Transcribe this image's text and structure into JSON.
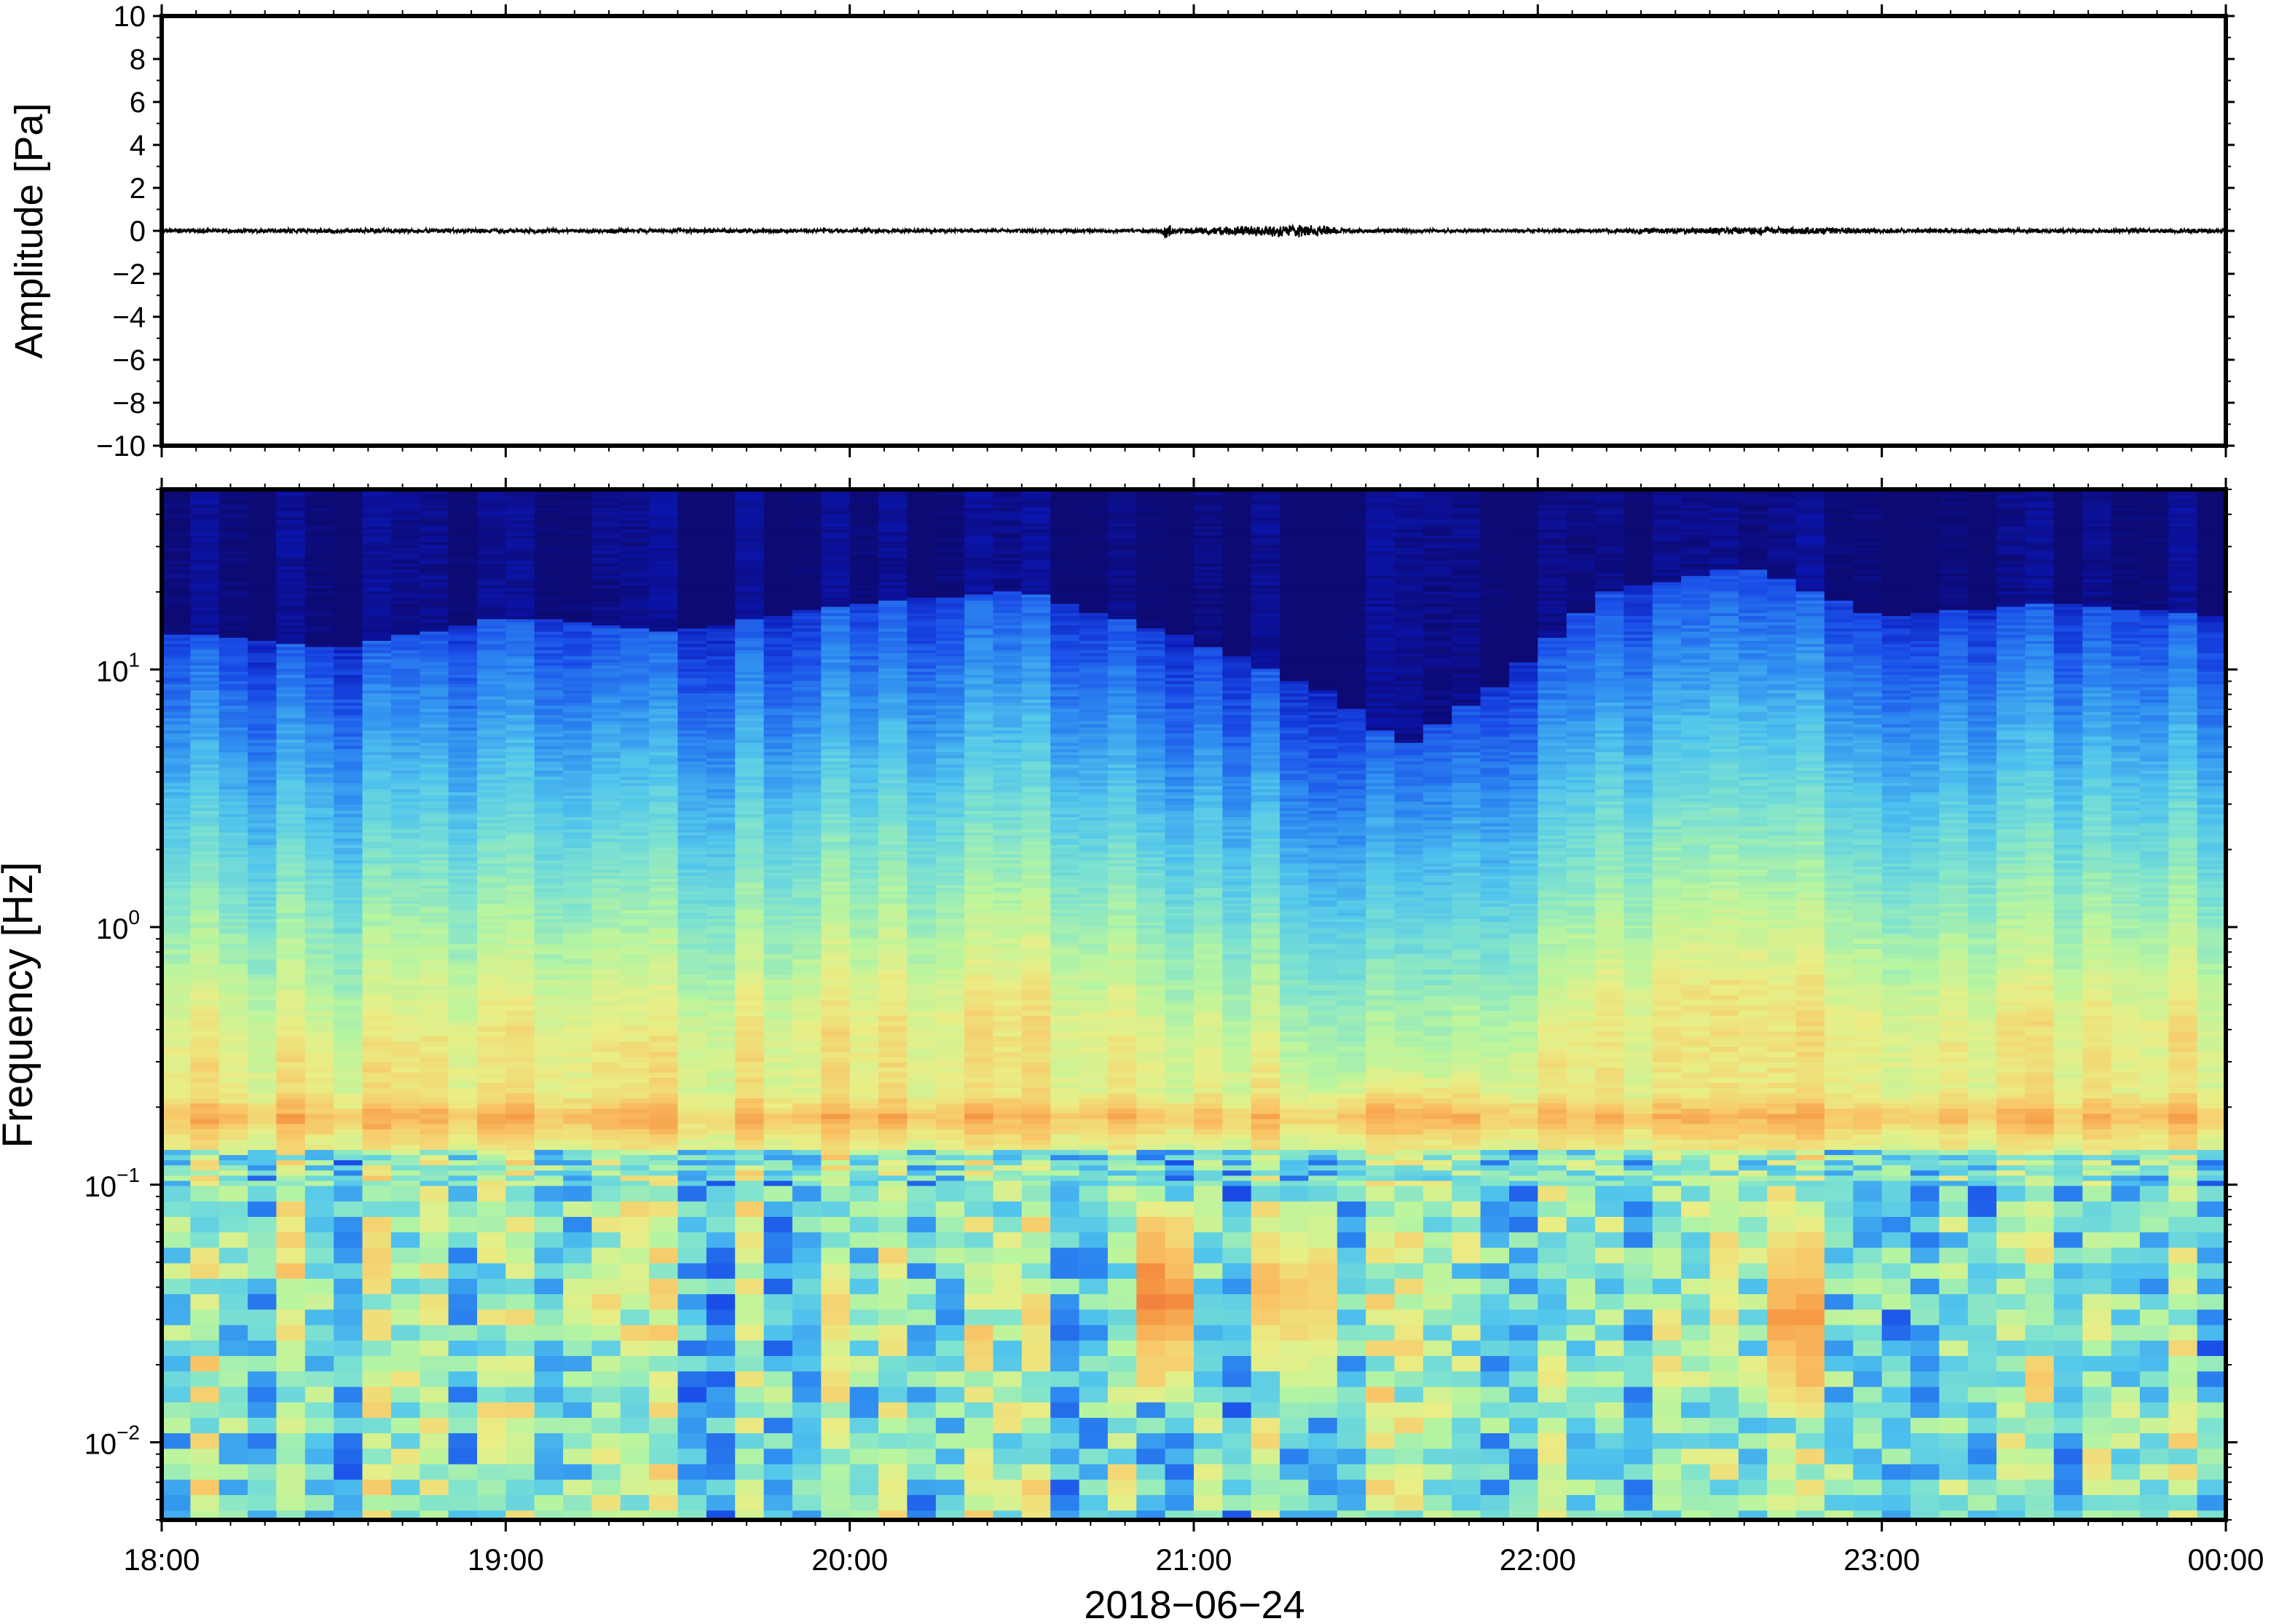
{
  "chart_data": [
    {
      "type": "line",
      "ylabel": "Amplitude [Pa]",
      "ylim": [
        -10,
        10
      ],
      "yticks": [
        "10",
        "8",
        "6",
        "4",
        "2",
        "0",
        "−2",
        "−4",
        "−6",
        "−8",
        "−10"
      ],
      "ytick_values": [
        10,
        8,
        6,
        4,
        2,
        0,
        -2,
        -4,
        -6,
        -8,
        -10
      ],
      "xlim_hours": [
        18,
        24
      ],
      "series": [
        {
          "noise_envelope": [
            {
              "t": 18.0,
              "amp": 0.12
            },
            {
              "t": 19.0,
              "amp": 0.12
            },
            {
              "t": 20.0,
              "amp": 0.1
            },
            {
              "t": 20.9,
              "amp": 0.1
            },
            {
              "t": 20.92,
              "amp": 0.5
            },
            {
              "t": 20.95,
              "amp": 0.12
            },
            {
              "t": 21.2,
              "amp": 0.3
            },
            {
              "t": 21.35,
              "amp": 0.35
            },
            {
              "t": 21.45,
              "amp": 0.12
            },
            {
              "t": 22.0,
              "amp": 0.08
            },
            {
              "t": 22.5,
              "amp": 0.18
            },
            {
              "t": 22.8,
              "amp": 0.2
            },
            {
              "t": 23.0,
              "amp": 0.12
            },
            {
              "t": 24.0,
              "amp": 0.12
            }
          ]
        }
      ]
    },
    {
      "type": "heatmap",
      "ylabel": "Frequency [Hz]",
      "yscale": "log",
      "ylim": [
        0.005,
        50
      ],
      "yticks": [
        {
          "base": "10",
          "exp": "1",
          "value": 10
        },
        {
          "base": "10",
          "exp": "0",
          "value": 1
        },
        {
          "base": "10",
          "exp": "−1",
          "value": 0.1
        },
        {
          "base": "10",
          "exp": "−2",
          "value": 0.01
        }
      ],
      "xlabel": "2018−06−24",
      "xticks": [
        "18:00",
        "19:00",
        "20:00",
        "21:00",
        "22:00",
        "23:00",
        "00:00"
      ],
      "xtick_hours": [
        18,
        19,
        20,
        21,
        22,
        23,
        24
      ],
      "colormap": [
        "#0d0a73",
        "#0a16b4",
        "#1a4ee8",
        "#2f8ef0",
        "#52c6ec",
        "#7fe3cf",
        "#b9f59f",
        "#e9ee86",
        "#f9c667",
        "#f5933f",
        "#e8523a"
      ],
      "noise_floor_freq": [
        {
          "t": 18.0,
          "f": 14
        },
        {
          "t": 18.5,
          "f": 12
        },
        {
          "t": 19.0,
          "f": 16
        },
        {
          "t": 19.5,
          "f": 14
        },
        {
          "t": 20.0,
          "f": 18
        },
        {
          "t": 20.5,
          "f": 20
        },
        {
          "t": 21.0,
          "f": 13
        },
        {
          "t": 21.4,
          "f": 8
        },
        {
          "t": 21.6,
          "f": 5
        },
        {
          "t": 21.9,
          "f": 9
        },
        {
          "t": 22.2,
          "f": 20
        },
        {
          "t": 22.6,
          "f": 25
        },
        {
          "t": 23.0,
          "f": 16
        },
        {
          "t": 23.5,
          "f": 18
        },
        {
          "t": 24.0,
          "f": 16
        }
      ],
      "microseism_band_hz": [
        0.15,
        0.22
      ],
      "high_energy_events": [
        {
          "t": 20.92,
          "f_low": 0.015,
          "f_high": 0.09,
          "level": 0.96
        },
        {
          "t": 21.25,
          "f_low": 0.018,
          "f_high": 0.08,
          "level": 0.8
        },
        {
          "t": 21.35,
          "f_low": 0.015,
          "f_high": 0.09,
          "level": 0.85
        },
        {
          "t": 22.75,
          "f_low": 0.012,
          "f_high": 0.08,
          "level": 0.85
        },
        {
          "t": 22.55,
          "f_low": 0.02,
          "f_high": 0.05,
          "level": 0.72
        },
        {
          "t": 19.25,
          "f_low": 0.025,
          "f_high": 0.05,
          "level": 0.72
        },
        {
          "t": 19.8,
          "f_low": 0.012,
          "f_high": 0.02,
          "level": 0.72
        }
      ]
    }
  ]
}
